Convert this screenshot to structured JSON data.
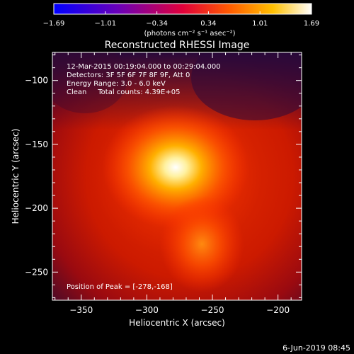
{
  "chart_data": {
    "type": "heatmap",
    "title": "Reconstructed RHESSI Image",
    "xlabel": "Heliocentric X (arcsec)",
    "ylabel": "Heliocentric Y (arcsec)",
    "xlim": [
      -372,
      -182
    ],
    "ylim": [
      -272,
      -78
    ],
    "x_ticks": [
      -350,
      -300,
      -250,
      -200
    ],
    "y_ticks": [
      -100,
      -150,
      -200,
      -250
    ],
    "colorbar": {
      "min": -1.69,
      "max": 1.69,
      "ticks": [
        "-1.69",
        "-1.01",
        "-0.34",
        "0.34",
        "1.01",
        "1.69"
      ],
      "unit_label": "(photons cm⁻² s⁻¹ asec⁻²)",
      "colormap": "blue-purple-red-yellow-white"
    },
    "annotations": {
      "time_range": "12-Mar-2015 00:19:04.000 to 00:29:04.000",
      "detectors": "Detectors: 3F 5F 6F 7F 8F 9F, Att 0",
      "energy_range": "Energy Range: 3.0 - 6.0 keV",
      "method_counts": "Clean     Total counts: 4.39E+05",
      "peak_position": "Position of Peak = [-278,-168]"
    },
    "sources": [
      {
        "x": -278,
        "y": -168,
        "intensity": 1.69,
        "sigma": 14
      },
      {
        "x": -258,
        "y": -228,
        "intensity": 0.9,
        "sigma": 10
      }
    ]
  },
  "footer": {
    "date": "6-Jun-2019 08:45"
  }
}
